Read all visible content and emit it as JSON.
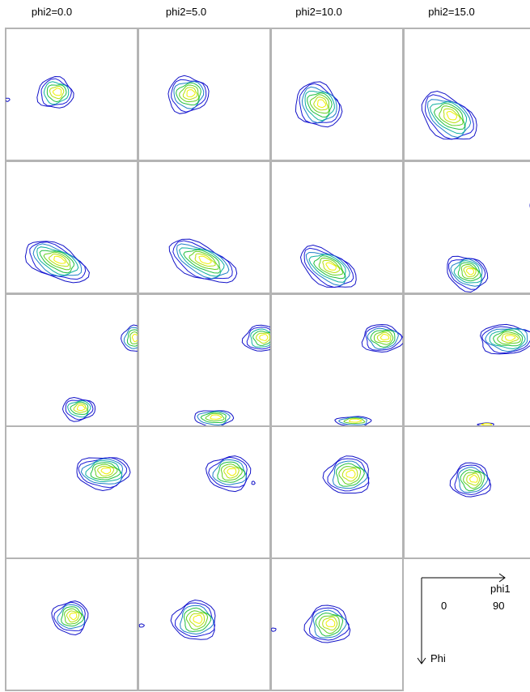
{
  "column_headers": [
    "phi2=0.0",
    "phi2=5.0",
    "phi2=10.0",
    "phi2=15.0"
  ],
  "legend": {
    "x_label": "phi1",
    "x_tick_start": "0",
    "x_tick_end": "90",
    "y_label": "Phi"
  },
  "contour_colors": [
    "#1212c8",
    "#1a1ad8",
    "#1f7fc8",
    "#10b0a0",
    "#20c040",
    "#60d020",
    "#b8e010",
    "#f0f000"
  ],
  "rows": 5,
  "panels_in_last_row": 3
}
